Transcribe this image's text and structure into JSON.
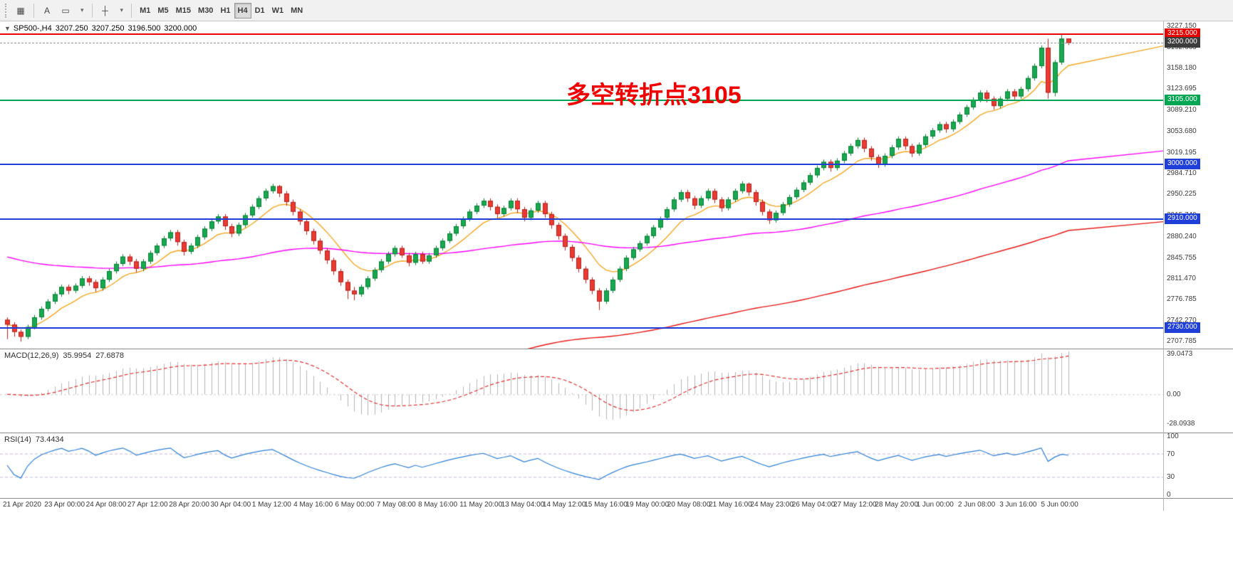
{
  "toolbar": {
    "tool_buttons": [
      {
        "id": "charts-button",
        "glyph": "▦"
      },
      {
        "id": "text-tool-button",
        "glyph": "A"
      },
      {
        "id": "label-tool-button",
        "glyph": "▭"
      },
      {
        "id": "tools-dropdown",
        "glyph": "▾"
      },
      {
        "id": "crosshair-tool-button",
        "glyph": "┼"
      },
      {
        "id": "crosshair-dropdown",
        "glyph": "▾"
      }
    ],
    "timeframes": [
      "M1",
      "M5",
      "M15",
      "M30",
      "H1",
      "H4",
      "D1",
      "W1",
      "MN"
    ],
    "active_timeframe": "H4"
  },
  "info_line": {
    "collapse_arrow": "▼",
    "symbol_period": "SP500-,H4",
    "open": "3207.250",
    "high": "3207.250",
    "low": "3196.500",
    "close": "3200.000"
  },
  "chart_data": {
    "type": "candlestick",
    "symbol": "SP500-",
    "timeframe": "H4",
    "ylim": [
      2700,
      3232
    ],
    "y_axis_ticks": [
      "3227.150",
      "3192.665",
      "3158.180",
      "3123.695",
      "3089.210",
      "3053.680",
      "3019.195",
      "2984.710",
      "2950.225",
      "2915.740",
      "2880.240",
      "2845.755",
      "2811.470",
      "2776.785",
      "2742.270",
      "2707.785"
    ],
    "time_labels": [
      "21 Apr 2020",
      "23 Apr 00:00",
      "24 Apr 08:00",
      "27 Apr 12:00",
      "28 Apr 20:00",
      "30 Apr 04:00",
      "1 May 12:00",
      "4 May 16:00",
      "6 May 00:00",
      "7 May 08:00",
      "8 May 16:00",
      "11 May 20:00",
      "13 May 04:00",
      "14 May 12:00",
      "15 May 16:00",
      "19 May 00:00",
      "20 May 08:00",
      "21 May 16:00",
      "24 May 23:00",
      "26 May 04:00",
      "27 May 12:00",
      "28 May 20:00",
      "1 Jun 00:00",
      "2 Jun 08:00",
      "3 Jun 16:00",
      "5 Jun 00:00"
    ],
    "candles": [
      [
        2744,
        2748,
        2712,
        2736
      ],
      [
        2736,
        2740,
        2716,
        2724
      ],
      [
        2724,
        2728,
        2708,
        2716
      ],
      [
        2716,
        2736,
        2712,
        2732
      ],
      [
        2732,
        2752,
        2728,
        2748
      ],
      [
        2748,
        2766,
        2744,
        2762
      ],
      [
        2762,
        2778,
        2758,
        2774
      ],
      [
        2774,
        2790,
        2770,
        2786
      ],
      [
        2786,
        2802,
        2782,
        2798
      ],
      [
        2798,
        2802,
        2786,
        2792
      ],
      [
        2792,
        2804,
        2788,
        2800
      ],
      [
        2800,
        2816,
        2796,
        2812
      ],
      [
        2812,
        2816,
        2800,
        2806
      ],
      [
        2806,
        2810,
        2790,
        2796
      ],
      [
        2796,
        2814,
        2792,
        2810
      ],
      [
        2810,
        2828,
        2806,
        2824
      ],
      [
        2824,
        2840,
        2820,
        2836
      ],
      [
        2836,
        2852,
        2832,
        2848
      ],
      [
        2848,
        2852,
        2834,
        2840
      ],
      [
        2840,
        2844,
        2822,
        2828
      ],
      [
        2828,
        2844,
        2824,
        2840
      ],
      [
        2840,
        2858,
        2836,
        2854
      ],
      [
        2854,
        2870,
        2850,
        2866
      ],
      [
        2866,
        2882,
        2862,
        2878
      ],
      [
        2878,
        2892,
        2874,
        2888
      ],
      [
        2888,
        2892,
        2866,
        2872
      ],
      [
        2872,
        2876,
        2850,
        2856
      ],
      [
        2856,
        2870,
        2852,
        2866
      ],
      [
        2866,
        2884,
        2862,
        2880
      ],
      [
        2880,
        2898,
        2876,
        2894
      ],
      [
        2894,
        2910,
        2890,
        2906
      ],
      [
        2906,
        2918,
        2902,
        2914
      ],
      [
        2914,
        2918,
        2892,
        2898
      ],
      [
        2898,
        2902,
        2880,
        2886
      ],
      [
        2886,
        2904,
        2882,
        2900
      ],
      [
        2900,
        2920,
        2896,
        2916
      ],
      [
        2916,
        2934,
        2912,
        2930
      ],
      [
        2930,
        2948,
        2926,
        2944
      ],
      [
        2944,
        2960,
        2940,
        2956
      ],
      [
        2956,
        2968,
        2952,
        2964
      ],
      [
        2964,
        2966,
        2946,
        2952
      ],
      [
        2952,
        2956,
        2932,
        2938
      ],
      [
        2938,
        2942,
        2916,
        2922
      ],
      [
        2922,
        2926,
        2900,
        2906
      ],
      [
        2906,
        2910,
        2884,
        2890
      ],
      [
        2890,
        2894,
        2868,
        2874
      ],
      [
        2874,
        2878,
        2852,
        2858
      ],
      [
        2858,
        2862,
        2836,
        2842
      ],
      [
        2842,
        2846,
        2818,
        2824
      ],
      [
        2824,
        2828,
        2800,
        2806
      ],
      [
        2806,
        2810,
        2778,
        2792
      ],
      [
        2792,
        2798,
        2776,
        2786
      ],
      [
        2786,
        2802,
        2782,
        2798
      ],
      [
        2798,
        2816,
        2794,
        2812
      ],
      [
        2812,
        2830,
        2808,
        2826
      ],
      [
        2826,
        2844,
        2822,
        2840
      ],
      [
        2840,
        2856,
        2836,
        2852
      ],
      [
        2852,
        2866,
        2848,
        2862
      ],
      [
        2862,
        2866,
        2846,
        2850
      ],
      [
        2850,
        2854,
        2832,
        2838
      ],
      [
        2838,
        2856,
        2834,
        2852
      ],
      [
        2852,
        2856,
        2836,
        2840
      ],
      [
        2840,
        2854,
        2836,
        2850
      ],
      [
        2850,
        2866,
        2846,
        2862
      ],
      [
        2862,
        2878,
        2858,
        2874
      ],
      [
        2874,
        2890,
        2870,
        2886
      ],
      [
        2886,
        2902,
        2882,
        2898
      ],
      [
        2898,
        2914,
        2894,
        2910
      ],
      [
        2910,
        2926,
        2906,
        2922
      ],
      [
        2922,
        2936,
        2918,
        2932
      ],
      [
        2932,
        2944,
        2928,
        2940
      ],
      [
        2940,
        2944,
        2924,
        2930
      ],
      [
        2930,
        2934,
        2912,
        2918
      ],
      [
        2918,
        2932,
        2914,
        2928
      ],
      [
        2928,
        2944,
        2924,
        2940
      ],
      [
        2940,
        2944,
        2920,
        2926
      ],
      [
        2926,
        2930,
        2906,
        2912
      ],
      [
        2912,
        2928,
        2908,
        2924
      ],
      [
        2924,
        2940,
        2920,
        2936
      ],
      [
        2936,
        2940,
        2912,
        2918
      ],
      [
        2918,
        2922,
        2894,
        2900
      ],
      [
        2900,
        2904,
        2876,
        2882
      ],
      [
        2882,
        2886,
        2858,
        2864
      ],
      [
        2864,
        2868,
        2840,
        2846
      ],
      [
        2846,
        2850,
        2822,
        2828
      ],
      [
        2828,
        2832,
        2804,
        2810
      ],
      [
        2810,
        2814,
        2786,
        2792
      ],
      [
        2792,
        2796,
        2760,
        2774
      ],
      [
        2774,
        2796,
        2770,
        2792
      ],
      [
        2792,
        2814,
        2788,
        2810
      ],
      [
        2810,
        2832,
        2806,
        2828
      ],
      [
        2828,
        2850,
        2824,
        2846
      ],
      [
        2846,
        2864,
        2842,
        2860
      ],
      [
        2860,
        2874,
        2856,
        2870
      ],
      [
        2870,
        2886,
        2866,
        2882
      ],
      [
        2882,
        2900,
        2878,
        2896
      ],
      [
        2896,
        2914,
        2892,
        2910
      ],
      [
        2912,
        2930,
        2908,
        2926
      ],
      [
        2926,
        2946,
        2922,
        2942
      ],
      [
        2942,
        2958,
        2938,
        2954
      ],
      [
        2954,
        2958,
        2938,
        2944
      ],
      [
        2944,
        2948,
        2926,
        2932
      ],
      [
        2932,
        2948,
        2928,
        2944
      ],
      [
        2944,
        2960,
        2940,
        2956
      ],
      [
        2956,
        2960,
        2936,
        2942
      ],
      [
        2942,
        2946,
        2922,
        2928
      ],
      [
        2928,
        2946,
        2924,
        2942
      ],
      [
        2942,
        2960,
        2938,
        2956
      ],
      [
        2956,
        2972,
        2952,
        2968
      ],
      [
        2968,
        2970,
        2948,
        2954
      ],
      [
        2954,
        2958,
        2932,
        2938
      ],
      [
        2938,
        2942,
        2916,
        2922
      ],
      [
        2922,
        2926,
        2902,
        2908
      ],
      [
        2908,
        2924,
        2904,
        2920
      ],
      [
        2920,
        2938,
        2916,
        2934
      ],
      [
        2934,
        2950,
        2930,
        2946
      ],
      [
        2946,
        2962,
        2942,
        2958
      ],
      [
        2958,
        2974,
        2954,
        2970
      ],
      [
        2970,
        2986,
        2966,
        2982
      ],
      [
        2982,
        2998,
        2978,
        2994
      ],
      [
        2994,
        3008,
        2990,
        3004
      ],
      [
        3004,
        3008,
        2988,
        2994
      ],
      [
        2994,
        3010,
        2990,
        3006
      ],
      [
        3006,
        3022,
        3002,
        3018
      ],
      [
        3018,
        3034,
        3014,
        3030
      ],
      [
        3030,
        3044,
        3026,
        3040
      ],
      [
        3040,
        3044,
        3020,
        3026
      ],
      [
        3026,
        3030,
        3006,
        3012
      ],
      [
        3012,
        3016,
        2994,
        3000
      ],
      [
        3000,
        3018,
        2996,
        3014
      ],
      [
        3014,
        3032,
        3010,
        3028
      ],
      [
        3028,
        3046,
        3024,
        3042
      ],
      [
        3042,
        3046,
        3024,
        3030
      ],
      [
        3030,
        3034,
        3012,
        3018
      ],
      [
        3018,
        3036,
        3014,
        3032
      ],
      [
        3032,
        3050,
        3028,
        3046
      ],
      [
        3046,
        3060,
        3042,
        3056
      ],
      [
        3056,
        3070,
        3052,
        3066
      ],
      [
        3066,
        3070,
        3052,
        3058
      ],
      [
        3058,
        3074,
        3054,
        3070
      ],
      [
        3070,
        3086,
        3066,
        3082
      ],
      [
        3082,
        3098,
        3078,
        3094
      ],
      [
        3094,
        3110,
        3090,
        3106
      ],
      [
        3106,
        3122,
        3102,
        3118
      ],
      [
        3118,
        3122,
        3102,
        3108
      ],
      [
        3108,
        3112,
        3090,
        3096
      ],
      [
        3096,
        3112,
        3092,
        3108
      ],
      [
        3108,
        3124,
        3104,
        3120
      ],
      [
        3120,
        3124,
        3106,
        3112
      ],
      [
        3112,
        3128,
        3108,
        3124
      ],
      [
        3124,
        3146,
        3120,
        3142
      ],
      [
        3142,
        3166,
        3138,
        3162
      ],
      [
        3162,
        3196,
        3158,
        3192
      ],
      [
        3192,
        3207,
        3108,
        3118
      ],
      [
        3118,
        3172,
        3112,
        3168
      ],
      [
        3168,
        3215.5,
        3164,
        3207
      ],
      [
        3207.25,
        3207.25,
        3196.5,
        3200
      ]
    ],
    "up_color": "#17a94f",
    "up_border": "#0c7d37",
    "down_color": "#ea3a32",
    "down_border": "#b2231f",
    "moving_averages": [
      {
        "name": "fast-ma",
        "color": "#f5a623",
        "alpha": 0.2,
        "seed": null
      },
      {
        "name": "medium-ma",
        "color": "#ff00ff",
        "alpha": 0.022,
        "seed": 2850
      },
      {
        "name": "slow-ma",
        "color": "#e81717",
        "alpha": 0.012,
        "seed": 2430
      }
    ],
    "levels": [
      {
        "price": 3215.0,
        "label": "3215.000",
        "color": "#e60000"
      },
      {
        "price": 3105.0,
        "label": "3105.000",
        "color": "#00a651"
      },
      {
        "price": 3000.0,
        "label": "3000.000",
        "color": "#1f3fd8"
      },
      {
        "price": 2910.0,
        "label": "2910.000",
        "color": "#1f3fd8"
      },
      {
        "price": 2730.0,
        "label": "2730.000",
        "color": "#1f3fd8"
      }
    ],
    "current_price": {
      "value": 3200.0,
      "label": "3200.000",
      "badge_color": "#3c3c3c",
      "line_color": "#9a9a9a"
    },
    "annotation": {
      "text": "多空转折点3105",
      "color": "#f00000"
    },
    "indicators": [
      {
        "name": "MACD",
        "label": "MACD(12,26,9)",
        "value_main": "35.9954",
        "value_signal": "27.6878",
        "axis_ticks": [
          "39.0473",
          "0.00",
          "-28.0938"
        ],
        "range": [
          42,
          -32
        ],
        "histogram_color": "#b4b4b4",
        "signal_color": "#e23030",
        "params": {
          "fast": 12,
          "slow": 26,
          "signal": 9
        }
      },
      {
        "name": "RSI",
        "label": "RSI(14)",
        "value": "73.4434",
        "axis_ticks": [
          "100",
          "70",
          "30",
          "0"
        ],
        "levels": [
          70,
          30
        ],
        "range": [
          100,
          0
        ],
        "line_color": "#2e7fd6",
        "level_color": "#c8b6d8",
        "params": {
          "period": 14
        }
      }
    ]
  }
}
